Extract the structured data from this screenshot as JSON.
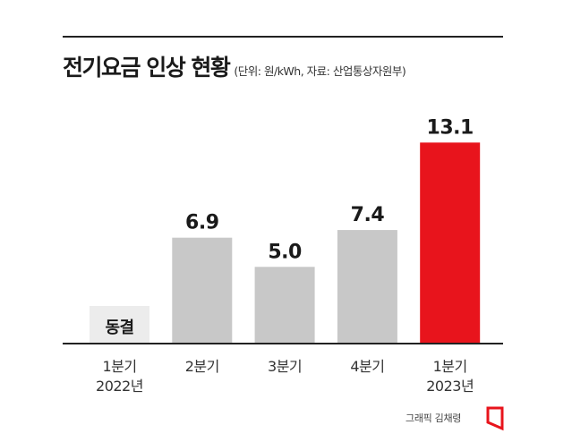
{
  "title": "전기요금 인상 현황",
  "subtitle": "(단위: 원/kWh, 자료: 산업통상자원부)",
  "credit": "그래픽 김채령",
  "colors": {
    "bar": "#c8c8c8",
    "highlight": "#e8141c",
    "flat": "#ececec",
    "axis": "#222222"
  },
  "chart_data": {
    "type": "bar",
    "categories": [
      [
        "1분기",
        "2022년"
      ],
      [
        "2분기"
      ],
      [
        "3분기"
      ],
      [
        "4분기"
      ],
      [
        "1분기",
        "2023년"
      ]
    ],
    "values": [
      0,
      6.9,
      5.0,
      7.4,
      13.1
    ],
    "value_labels": [
      "동결",
      "6.9",
      "5.0",
      "7.4",
      "13.1"
    ],
    "highlight_index": 4,
    "grid": false
  }
}
